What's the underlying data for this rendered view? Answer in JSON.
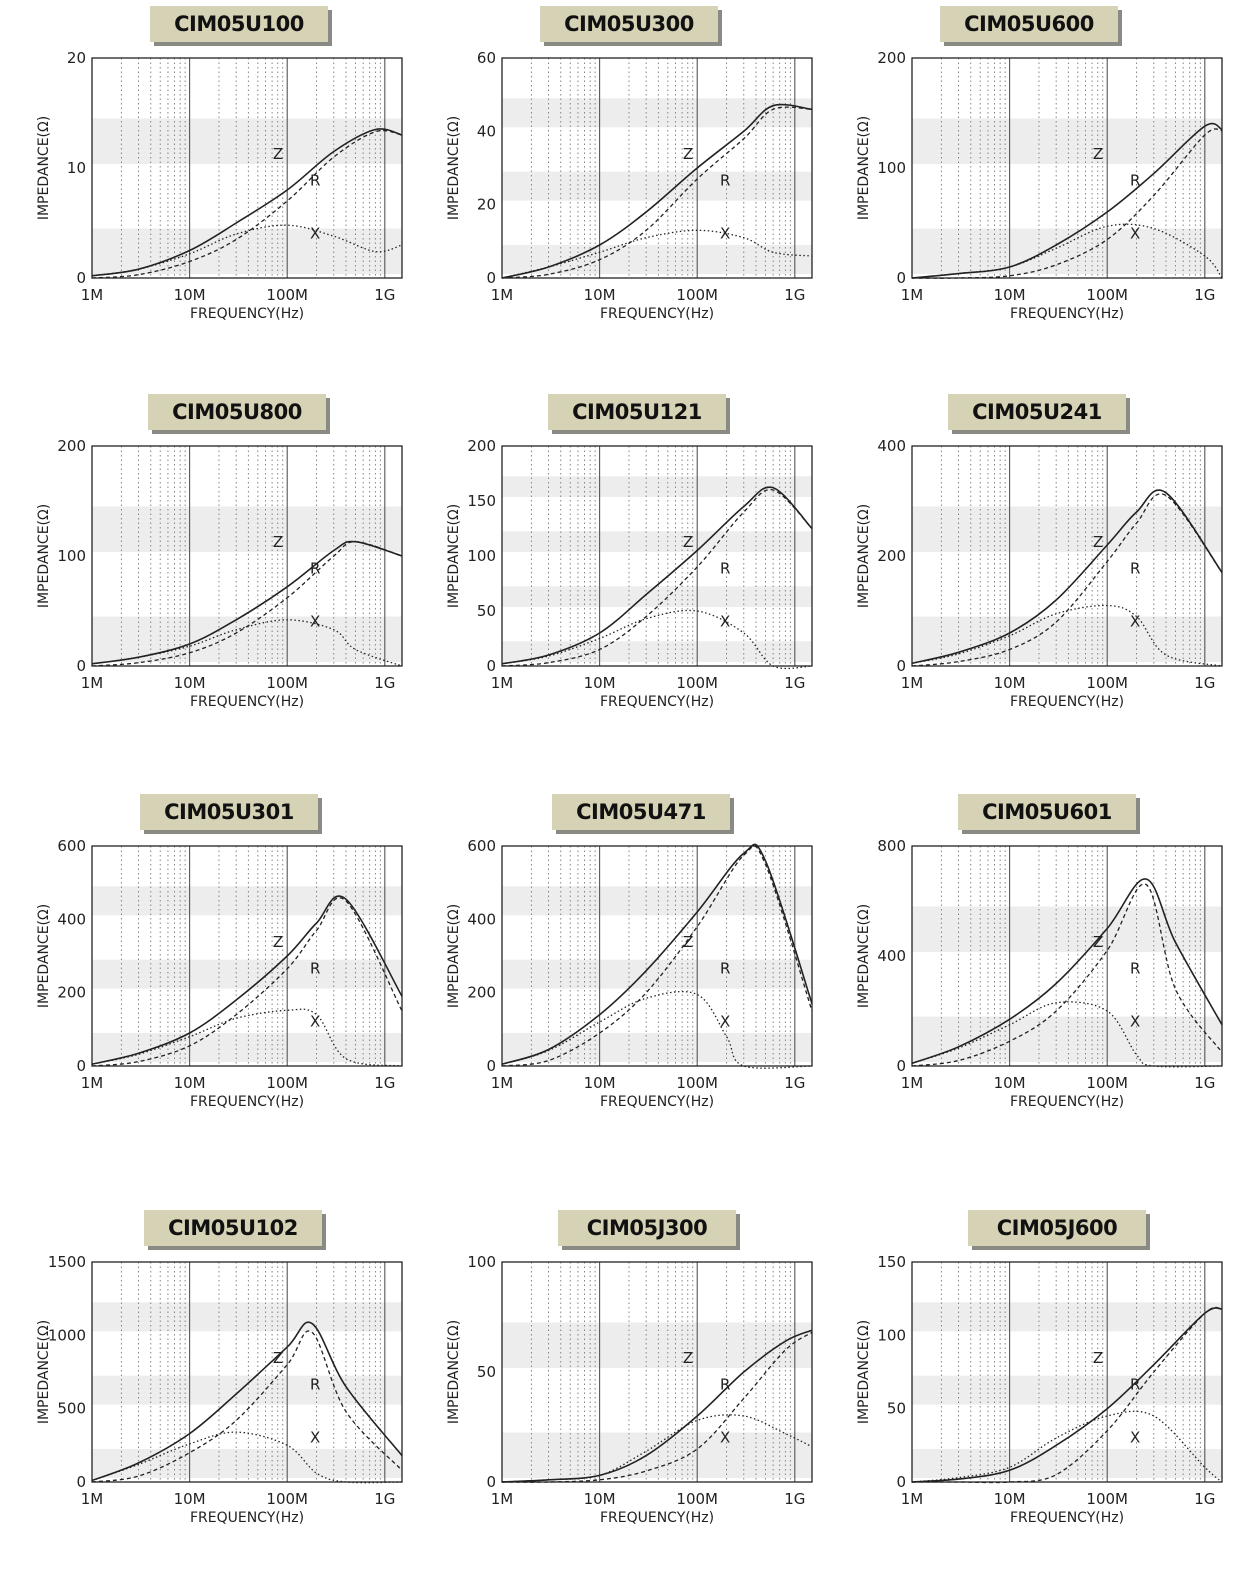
{
  "common": {
    "xlabel": "FREQUENCY(Hz)",
    "ylabel": "IMPEDANCE(Ω)",
    "x_ticks": [
      "1M",
      "10M",
      "100M",
      "1G"
    ],
    "curve_labels": {
      "z": "Z",
      "r": "R",
      "x": "X"
    },
    "colors": {
      "badge": "#d6d2b6",
      "band": "#ededed",
      "line": "#222222"
    }
  },
  "chart_data": [
    {
      "type": "line",
      "title": "CIM05U100",
      "xscale": "log",
      "xlim": [
        1000000.0,
        1500000000.0
      ],
      "ylim": [
        0,
        20
      ],
      "yticks": [
        0,
        10,
        20
      ],
      "grid": true,
      "series": [
        {
          "name": "Z",
          "x": [
            1000000.0,
            3000000.0,
            10000000.0,
            30000000.0,
            100000000.0,
            300000000.0,
            800000000.0,
            1500000000.0
          ],
          "values": [
            0.2,
            0.8,
            2.5,
            5,
            8,
            11.5,
            13.5,
            13
          ]
        },
        {
          "name": "R",
          "x": [
            1000000.0,
            3000000.0,
            10000000.0,
            30000000.0,
            100000000.0,
            300000000.0,
            800000000.0,
            1500000000.0
          ],
          "values": [
            0,
            0.3,
            1.5,
            3.5,
            7,
            11,
            13.3,
            13
          ]
        },
        {
          "name": "X",
          "x": [
            1000000.0,
            3000000.0,
            10000000.0,
            30000000.0,
            100000000.0,
            300000000.0,
            800000000.0,
            1500000000.0
          ],
          "values": [
            0.2,
            0.8,
            2.2,
            4,
            4.8,
            3.8,
            2.4,
            3
          ]
        }
      ]
    },
    {
      "type": "line",
      "title": "CIM05U300",
      "xscale": "log",
      "xlim": [
        1000000.0,
        1500000000.0
      ],
      "ylim": [
        0,
        60
      ],
      "yticks": [
        0,
        20,
        40,
        60
      ],
      "grid": true,
      "series": [
        {
          "name": "Z",
          "x": [
            1000000.0,
            3000000.0,
            10000000.0,
            30000000.0,
            100000000.0,
            300000000.0,
            600000000.0,
            1500000000.0
          ],
          "values": [
            0,
            3,
            9,
            18,
            30,
            40,
            47,
            46
          ]
        },
        {
          "name": "R",
          "x": [
            1000000.0,
            3000000.0,
            10000000.0,
            30000000.0,
            100000000.0,
            300000000.0,
            600000000.0,
            1500000000.0
          ],
          "values": [
            0,
            1,
            5,
            13,
            27,
            38,
            46,
            46
          ]
        },
        {
          "name": "X",
          "x": [
            1000000.0,
            3000000.0,
            10000000.0,
            30000000.0,
            100000000.0,
            300000000.0,
            600000000.0,
            1500000000.0
          ],
          "values": [
            0,
            3,
            7,
            11,
            13,
            11,
            7,
            6
          ]
        }
      ]
    },
    {
      "type": "line",
      "title": "CIM05U600",
      "xscale": "log",
      "xlim": [
        1000000.0,
        1500000000.0
      ],
      "ylim": [
        0,
        200
      ],
      "yticks": [
        0,
        100,
        200
      ],
      "grid": true,
      "series": [
        {
          "name": "Z",
          "x": [
            1000000.0,
            3000000.0,
            10000000.0,
            30000000.0,
            100000000.0,
            300000000.0,
            1000000000.0,
            1500000000.0
          ],
          "values": [
            0,
            4,
            10,
            30,
            60,
            95,
            138,
            135
          ]
        },
        {
          "name": "R",
          "x": [
            1000000.0,
            3000000.0,
            10000000.0,
            30000000.0,
            100000000.0,
            300000000.0,
            1000000000.0,
            1500000000.0
          ],
          "values": [
            0,
            0,
            2,
            12,
            35,
            75,
            130,
            134
          ]
        },
        {
          "name": "X",
          "x": [
            1000000.0,
            3000000.0,
            10000000.0,
            30000000.0,
            100000000.0,
            300000000.0,
            1000000000.0,
            1500000000.0
          ],
          "values": [
            0,
            4,
            10,
            27,
            47,
            45,
            20,
            0
          ]
        }
      ]
    },
    {
      "type": "line",
      "title": "CIM05U800",
      "xscale": "log",
      "xlim": [
        1000000.0,
        1500000000.0
      ],
      "ylim": [
        0,
        200
      ],
      "yticks": [
        0,
        100,
        200
      ],
      "grid": true,
      "series": [
        {
          "name": "Z",
          "x": [
            1000000.0,
            3000000.0,
            10000000.0,
            30000000.0,
            100000000.0,
            300000000.0,
            500000000.0,
            1500000000.0
          ],
          "values": [
            2,
            8,
            20,
            42,
            72,
            105,
            113,
            100
          ]
        },
        {
          "name": "R",
          "x": [
            1000000.0,
            3000000.0,
            10000000.0,
            30000000.0,
            100000000.0,
            300000000.0,
            500000000.0,
            1500000000.0
          ],
          "values": [
            0,
            3,
            12,
            30,
            62,
            100,
            113,
            100
          ]
        },
        {
          "name": "X",
          "x": [
            1000000.0,
            3000000.0,
            10000000.0,
            30000000.0,
            100000000.0,
            300000000.0,
            500000000.0,
            1500000000.0
          ],
          "values": [
            2,
            8,
            18,
            33,
            42,
            33,
            15,
            0
          ]
        }
      ]
    },
    {
      "type": "line",
      "title": "CIM05U121",
      "xscale": "log",
      "xlim": [
        1000000.0,
        1500000000.0
      ],
      "ylim": [
        0,
        200
      ],
      "yticks": [
        0,
        50,
        100,
        150,
        200
      ],
      "grid": true,
      "series": [
        {
          "name": "Z",
          "x": [
            1000000.0,
            3000000.0,
            10000000.0,
            30000000.0,
            100000000.0,
            300000000.0,
            600000000.0,
            1500000000.0
          ],
          "values": [
            2,
            10,
            30,
            65,
            105,
            145,
            162,
            125
          ]
        },
        {
          "name": "R",
          "x": [
            1000000.0,
            3000000.0,
            10000000.0,
            30000000.0,
            100000000.0,
            300000000.0,
            600000000.0,
            1500000000.0
          ],
          "values": [
            0,
            3,
            15,
            45,
            90,
            140,
            160,
            125
          ]
        },
        {
          "name": "X",
          "x": [
            1000000.0,
            3000000.0,
            10000000.0,
            30000000.0,
            100000000.0,
            300000000.0,
            600000000.0,
            1500000000.0
          ],
          "values": [
            2,
            9,
            25,
            43,
            50,
            30,
            0,
            0
          ]
        }
      ]
    },
    {
      "type": "line",
      "title": "CIM05U241",
      "xscale": "log",
      "xlim": [
        1000000.0,
        1500000000.0
      ],
      "ylim": [
        0,
        400
      ],
      "yticks": [
        0,
        200,
        400
      ],
      "grid": true,
      "series": [
        {
          "name": "Z",
          "x": [
            1000000.0,
            3000000.0,
            10000000.0,
            30000000.0,
            100000000.0,
            200000000.0,
            400000000.0,
            1500000000.0
          ],
          "values": [
            5,
            25,
            60,
            120,
            220,
            280,
            315,
            170
          ]
        },
        {
          "name": "R",
          "x": [
            1000000.0,
            3000000.0,
            10000000.0,
            30000000.0,
            100000000.0,
            200000000.0,
            400000000.0,
            1500000000.0
          ],
          "values": [
            0,
            8,
            30,
            80,
            190,
            260,
            310,
            170
          ]
        },
        {
          "name": "X",
          "x": [
            1000000.0,
            3000000.0,
            10000000.0,
            30000000.0,
            100000000.0,
            200000000.0,
            400000000.0,
            1500000000.0
          ],
          "values": [
            5,
            22,
            55,
            95,
            110,
            90,
            20,
            0
          ]
        }
      ]
    },
    {
      "type": "line",
      "title": "CIM05U301",
      "xscale": "log",
      "xlim": [
        1000000.0,
        1500000000.0
      ],
      "ylim": [
        0,
        600
      ],
      "yticks": [
        0,
        200,
        400,
        600
      ],
      "grid": true,
      "series": [
        {
          "name": "Z",
          "x": [
            1000000.0,
            3000000.0,
            10000000.0,
            30000000.0,
            100000000.0,
            200000000.0,
            400000000.0,
            1500000000.0
          ],
          "values": [
            5,
            35,
            90,
            180,
            300,
            390,
            455,
            190
          ]
        },
        {
          "name": "R",
          "x": [
            1000000.0,
            3000000.0,
            10000000.0,
            30000000.0,
            100000000.0,
            200000000.0,
            400000000.0,
            1500000000.0
          ],
          "values": [
            0,
            12,
            55,
            140,
            265,
            370,
            450,
            150
          ]
        },
        {
          "name": "X",
          "x": [
            1000000.0,
            3000000.0,
            10000000.0,
            30000000.0,
            100000000.0,
            200000000.0,
            400000000.0,
            1500000000.0
          ],
          "values": [
            5,
            32,
            80,
            130,
            152,
            140,
            20,
            0
          ]
        }
      ]
    },
    {
      "type": "line",
      "title": "CIM05U471",
      "xscale": "log",
      "xlim": [
        1000000.0,
        1500000000.0
      ],
      "ylim": [
        0,
        600
      ],
      "yticks": [
        0,
        200,
        400,
        600
      ],
      "grid": true,
      "series": [
        {
          "name": "Z",
          "x": [
            1000000.0,
            3000000.0,
            10000000.0,
            30000000.0,
            100000000.0,
            300000000.0,
            500000000.0,
            1500000000.0
          ],
          "values": [
            5,
            45,
            140,
            260,
            420,
            580,
            560,
            170
          ]
        },
        {
          "name": "R",
          "x": [
            1000000.0,
            3000000.0,
            10000000.0,
            30000000.0,
            100000000.0,
            300000000.0,
            500000000.0,
            1500000000.0
          ],
          "values": [
            0,
            15,
            90,
            200,
            380,
            575,
            550,
            150
          ]
        },
        {
          "name": "X",
          "x": [
            1000000.0,
            3000000.0,
            10000000.0,
            30000000.0,
            100000000.0,
            200000000.0,
            300000000.0,
            1500000000.0
          ],
          "values": [
            5,
            42,
            120,
            185,
            195,
            80,
            0,
            0
          ]
        }
      ]
    },
    {
      "type": "line",
      "title": "CIM05U601",
      "xscale": "log",
      "xlim": [
        1000000.0,
        1500000000.0
      ],
      "ylim": [
        0,
        800
      ],
      "yticks": [
        0,
        400,
        800
      ],
      "grid": true,
      "series": [
        {
          "name": "Z",
          "x": [
            1000000.0,
            3000000.0,
            10000000.0,
            30000000.0,
            100000000.0,
            250000000.0,
            500000000.0,
            1500000000.0
          ],
          "values": [
            10,
            70,
            170,
            300,
            500,
            680,
            450,
            150
          ]
        },
        {
          "name": "R",
          "x": [
            1000000.0,
            3000000.0,
            10000000.0,
            30000000.0,
            100000000.0,
            250000000.0,
            500000000.0,
            1500000000.0
          ],
          "values": [
            0,
            20,
            90,
            200,
            420,
            660,
            280,
            50
          ]
        },
        {
          "name": "X",
          "x": [
            1000000.0,
            3000000.0,
            10000000.0,
            30000000.0,
            100000000.0,
            200000000.0,
            300000000.0,
            1500000000.0
          ],
          "values": [
            10,
            65,
            150,
            230,
            200,
            40,
            0,
            0
          ]
        }
      ]
    },
    {
      "type": "line",
      "title": "CIM05U102",
      "xscale": "log",
      "xlim": [
        1000000.0,
        1500000000.0
      ],
      "ylim": [
        0,
        1500
      ],
      "yticks": [
        0,
        500,
        1000,
        1500
      ],
      "grid": true,
      "series": [
        {
          "name": "Z",
          "x": [
            1000000.0,
            3000000.0,
            10000000.0,
            30000000.0,
            100000000.0,
            180000000.0,
            400000000.0,
            1500000000.0
          ],
          "values": [
            10,
            130,
            330,
            600,
            920,
            1080,
            650,
            180
          ]
        },
        {
          "name": "R",
          "x": [
            1000000.0,
            3000000.0,
            10000000.0,
            30000000.0,
            100000000.0,
            180000000.0,
            400000000.0,
            1500000000.0
          ],
          "values": [
            0,
            40,
            200,
            420,
            800,
            1020,
            480,
            80
          ]
        },
        {
          "name": "X",
          "x": [
            1000000.0,
            3000000.0,
            10000000.0,
            30000000.0,
            100000000.0,
            200000000.0,
            400000000.0,
            1500000000.0
          ],
          "values": [
            10,
            120,
            260,
            340,
            250,
            60,
            0,
            0
          ]
        }
      ]
    },
    {
      "type": "line",
      "title": "CIM05J300",
      "xscale": "log",
      "xlim": [
        1000000.0,
        1500000000.0
      ],
      "ylim": [
        0,
        100
      ],
      "yticks": [
        0,
        50,
        100
      ],
      "grid": true,
      "series": [
        {
          "name": "Z",
          "x": [
            1000000.0,
            3000000.0,
            10000000.0,
            30000000.0,
            100000000.0,
            300000000.0,
            800000000.0,
            1500000000.0
          ],
          "values": [
            0,
            1,
            3,
            12,
            30,
            50,
            64,
            69
          ]
        },
        {
          "name": "R",
          "x": [
            1000000.0,
            3000000.0,
            10000000.0,
            30000000.0,
            100000000.0,
            300000000.0,
            800000000.0,
            1500000000.0
          ],
          "values": [
            0,
            0,
            1,
            5,
            15,
            38,
            60,
            68
          ]
        },
        {
          "name": "X",
          "x": [
            1000000.0,
            3000000.0,
            10000000.0,
            30000000.0,
            100000000.0,
            300000000.0,
            800000000.0,
            1500000000.0
          ],
          "values": [
            0,
            1,
            3,
            14,
            28,
            30,
            22,
            16
          ]
        }
      ]
    },
    {
      "type": "line",
      "title": "CIM05J600",
      "xscale": "log",
      "xlim": [
        1000000.0,
        1500000000.0
      ],
      "ylim": [
        0,
        150
      ],
      "yticks": [
        0,
        50,
        100,
        150
      ],
      "grid": true,
      "series": [
        {
          "name": "Z",
          "x": [
            1000000.0,
            3000000.0,
            10000000.0,
            30000000.0,
            100000000.0,
            300000000.0,
            1000000000.0,
            1500000000.0
          ],
          "values": [
            0,
            2,
            8,
            25,
            50,
            80,
            115,
            118
          ]
        },
        {
          "name": "R",
          "x": [
            1000000.0,
            3000000.0,
            10000000.0,
            30000000.0,
            100000000.0,
            300000000.0,
            1000000000.0,
            1500000000.0
          ],
          "values": [
            0,
            0,
            0,
            5,
            35,
            75,
            115,
            118
          ]
        },
        {
          "name": "X",
          "x": [
            1000000.0,
            3000000.0,
            10000000.0,
            30000000.0,
            100000000.0,
            300000000.0,
            1000000000.0,
            1500000000.0
          ],
          "values": [
            0,
            3,
            10,
            30,
            45,
            45,
            10,
            0
          ]
        }
      ]
    }
  ]
}
